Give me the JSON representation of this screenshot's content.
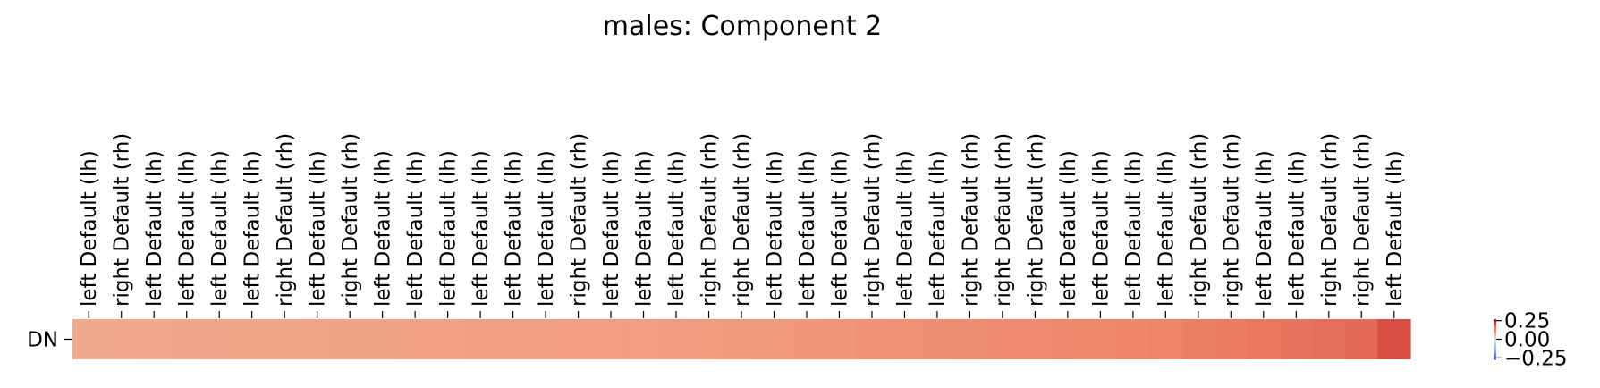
{
  "chart_data": {
    "type": "heatmap",
    "title": "males: Component 2",
    "row_labels": [
      "DN"
    ],
    "column_labels": [
      "left Default (lh)",
      "right Default (rh)",
      "left Default (lh)",
      "left Default (lh)",
      "left Default (lh)",
      "left Default (lh)",
      "right Default (rh)",
      "left Default (lh)",
      "right Default (rh)",
      "left Default (lh)",
      "left Default (lh)",
      "left Default (lh)",
      "left Default (lh)",
      "left Default (lh)",
      "left Default (lh)",
      "right Default (rh)",
      "left Default (lh)",
      "left Default (lh)",
      "left Default (lh)",
      "right Default (rh)",
      "right Default (rh)",
      "left Default (lh)",
      "left Default (lh)",
      "left Default (lh)",
      "right Default (rh)",
      "left Default (lh)",
      "left Default (lh)",
      "right Default (rh)",
      "right Default (rh)",
      "right Default (rh)",
      "left Default (lh)",
      "left Default (lh)",
      "left Default (lh)",
      "left Default (lh)",
      "right Default (rh)",
      "right Default (rh)",
      "left Default (lh)",
      "left Default (lh)",
      "right Default (rh)",
      "right Default (rh)",
      "left Default (lh)"
    ],
    "values": [
      [
        0.085,
        0.086,
        0.088,
        0.089,
        0.09,
        0.091,
        0.092,
        0.093,
        0.094,
        0.095,
        0.096,
        0.097,
        0.098,
        0.099,
        0.1,
        0.101,
        0.102,
        0.103,
        0.104,
        0.106,
        0.108,
        0.11,
        0.112,
        0.114,
        0.117,
        0.119,
        0.121,
        0.123,
        0.125,
        0.127,
        0.129,
        0.131,
        0.134,
        0.137,
        0.141,
        0.146,
        0.152,
        0.157,
        0.163,
        0.168,
        0.205
      ]
    ],
    "colormap": "coolwarm",
    "colorbar": {
      "ticks": [
        0.25,
        0.0,
        -0.25
      ],
      "tick_labels": [
        "0.25",
        "0.00",
        "−0.25"
      ],
      "range": [
        -0.27,
        0.27
      ],
      "colors": {
        "low": "#3b4cc0",
        "mid": "#dddddd",
        "high": "#b40426"
      }
    }
  }
}
